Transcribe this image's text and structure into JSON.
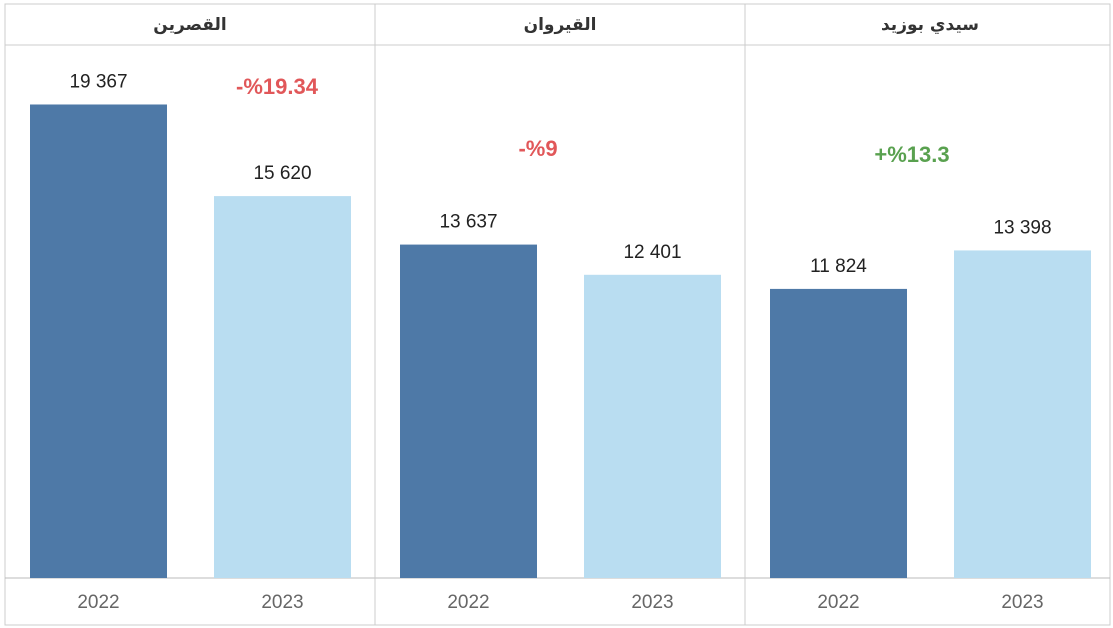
{
  "chart_data": [
    {
      "type": "bar",
      "title": "القصرين",
      "categories": [
        "2022",
        "2023"
      ],
      "values": [
        19367,
        15620
      ],
      "value_labels": [
        "19 367",
        "15 620"
      ],
      "colors": [
        "#4e79a7",
        "#b9ddf1"
      ],
      "ylim": [
        0,
        21800
      ],
      "annotation": "-%19.34",
      "annotation_color": "#e15759"
    },
    {
      "type": "bar",
      "title": "القيروان",
      "categories": [
        "2022",
        "2023"
      ],
      "values": [
        13637,
        12401
      ],
      "value_labels": [
        "13 637",
        "12 401"
      ],
      "colors": [
        "#4e79a7",
        "#b9ddf1"
      ],
      "ylim": [
        0,
        21800
      ],
      "annotation": "-%9",
      "annotation_color": "#e15759"
    },
    {
      "type": "bar",
      "title": "سيدي بوزيد",
      "categories": [
        "2022",
        "2023"
      ],
      "values": [
        11824,
        13398
      ],
      "value_labels": [
        "11 824",
        "13 398"
      ],
      "colors": [
        "#4e79a7",
        "#b9ddf1"
      ],
      "ylim": [
        0,
        21800
      ],
      "annotation": "+%13.3",
      "annotation_color": "#59a14f"
    }
  ]
}
